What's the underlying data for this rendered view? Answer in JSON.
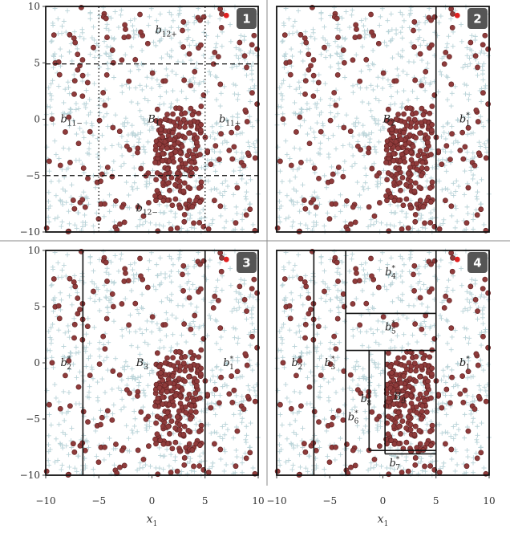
{
  "chart_data": {
    "type": "scatter",
    "xlabel": "x1",
    "x_ticks": [
      "−10",
      "−5",
      "0",
      "5",
      "10"
    ],
    "y_ticks": [
      "10",
      "5",
      "0",
      "−5",
      "−10"
    ],
    "xlim": [
      -10,
      10
    ],
    "ylim": [
      -10,
      10
    ],
    "colors": {
      "circle": "#8f3b3b",
      "cross": "#b9d3d8",
      "highlight": "#e02020",
      "badge": "#555555"
    },
    "panels": [
      {
        "id": "1",
        "lines": [
          {
            "x1": -10,
            "y1": 4.9,
            "x2": 10,
            "y2": 4.9,
            "style": "dashed"
          },
          {
            "x1": -10,
            "y1": -5,
            "x2": 10,
            "y2": -5,
            "style": "dashed"
          },
          {
            "x1": -5,
            "y1": -10,
            "x2": -5,
            "y2": 10,
            "style": "dotted"
          },
          {
            "x1": 5,
            "y1": -10,
            "x2": 5,
            "y2": 10,
            "style": "dotted"
          }
        ],
        "labels": [
          {
            "main": "b",
            "sub": "12+",
            "x": 0.3,
            "y": 7.6
          },
          {
            "main": "b",
            "sub": "11−",
            "x": -8.6,
            "y": -0.3
          },
          {
            "main": "B",
            "sub": "1",
            "x": -0.4,
            "y": -0.3
          },
          {
            "main": "b",
            "sub": "11+",
            "x": 6.3,
            "y": -0.3
          },
          {
            "main": "b",
            "sub": "12−",
            "x": -1.5,
            "y": -8.2
          }
        ]
      },
      {
        "id": "2",
        "lines": [
          {
            "x1": 5,
            "y1": -10,
            "x2": 5,
            "y2": 10,
            "style": "solid"
          }
        ],
        "labels": [
          {
            "main": "B",
            "sub": "2",
            "x": 0,
            "y": -0.3
          },
          {
            "main": "b",
            "sub": "1",
            "sup": "*",
            "x": 7.2,
            "y": -0.3
          }
        ]
      },
      {
        "id": "3",
        "lines": [
          {
            "x1": -6.5,
            "y1": -10,
            "x2": -6.5,
            "y2": 10,
            "style": "solid"
          },
          {
            "x1": 5,
            "y1": -10,
            "x2": 5,
            "y2": 10,
            "style": "solid"
          }
        ],
        "labels": [
          {
            "main": "b",
            "sub": "2",
            "sup": "*",
            "x": -8.6,
            "y": -0.3
          },
          {
            "main": "B",
            "sub": "3",
            "x": -1.5,
            "y": -0.3
          },
          {
            "main": "b",
            "sub": "1",
            "sup": "*",
            "x": 6.7,
            "y": -0.3
          }
        ]
      },
      {
        "id": "4",
        "lines": [
          {
            "x1": -6.5,
            "y1": -10,
            "x2": -6.5,
            "y2": 10,
            "style": "solid"
          },
          {
            "x1": -3.5,
            "y1": -10,
            "x2": -3.5,
            "y2": 10,
            "style": "solid"
          },
          {
            "x1": 5,
            "y1": -10,
            "x2": 5,
            "y2": 10,
            "style": "solid"
          },
          {
            "x1": -3.5,
            "y1": 4.4,
            "x2": 5,
            "y2": 4.4,
            "style": "solid"
          },
          {
            "x1": -3.5,
            "y1": 1.1,
            "x2": 5,
            "y2": 1.1,
            "style": "solid"
          },
          {
            "x1": -1.3,
            "y1": -7.8,
            "x2": -1.3,
            "y2": 1.1,
            "style": "solid"
          },
          {
            "x1": 0.2,
            "y1": -8.1,
            "x2": 0.2,
            "y2": 1.1,
            "style": "solid"
          },
          {
            "x1": -1.3,
            "y1": -7.8,
            "x2": 5,
            "y2": -7.8,
            "style": "solid"
          },
          {
            "x1": 0.2,
            "y1": -8.1,
            "x2": 5,
            "y2": -8.1,
            "style": "solid"
          }
        ],
        "labels": [
          {
            "main": "b",
            "sub": "2",
            "sup": "*",
            "x": -8.6,
            "y": -0.3
          },
          {
            "main": "b",
            "sub": "3",
            "sup": "*",
            "x": -5.5,
            "y": -0.3
          },
          {
            "main": "b",
            "sub": "4",
            "sup": "*",
            "x": 0.2,
            "y": 7.8
          },
          {
            "main": "b",
            "sub": "5",
            "sup": "*",
            "x": 0.2,
            "y": 2.9
          },
          {
            "main": "b",
            "sub": "8",
            "sup": "*",
            "x": -2.1,
            "y": -3.5
          },
          {
            "main": "B",
            "sub": "9",
            "x": 1.0,
            "y": -3.3
          },
          {
            "main": "b",
            "sub": "6",
            "sup": "*",
            "x": -3.3,
            "y": -5.1
          },
          {
            "main": "b",
            "sub": "7",
            "sup": "*",
            "x": 0.6,
            "y": -9.2
          },
          {
            "main": "b",
            "sub": "1",
            "sup": "*",
            "x": 7.2,
            "y": -0.3
          }
        ]
      }
    ]
  }
}
